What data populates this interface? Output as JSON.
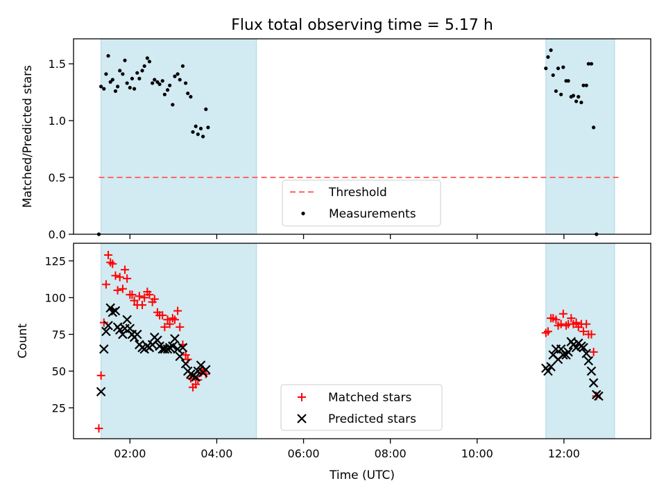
{
  "title": "Flux total observing time = 5.17 h",
  "colors": {
    "observing_band": "#add8e6",
    "threshold": "#ff6666",
    "measurements": "#000000",
    "matched": "#ff0000",
    "predicted": "#000000"
  },
  "chart_data": [
    {
      "type": "scatter",
      "panel": "top",
      "ylabel": "Matched/Predicted stars",
      "xlabel": "",
      "xlim": [
        "00:42",
        "14:00"
      ],
      "ylim": [
        0,
        1.72
      ],
      "yticks": [
        0.0,
        0.5,
        1.0,
        1.5
      ],
      "ytick_labels": [
        "0.0",
        "0.5",
        "1.0",
        "1.5"
      ],
      "grid": false,
      "legend_position": "bottom-center",
      "shaded_intervals": [
        [
          "01:20",
          "04:55"
        ],
        [
          "11:35",
          "13:10"
        ]
      ],
      "threshold": {
        "name": "Threshold",
        "value": 0.5,
        "style": "dashed",
        "x_range": [
          "01:17",
          "13:17"
        ]
      },
      "series": [
        {
          "name": "Measurements",
          "marker": "dot",
          "x": [
            "01:17",
            "01:20",
            "01:24",
            "01:27",
            "01:30",
            "01:33",
            "01:36",
            "01:40",
            "01:43",
            "01:46",
            "01:50",
            "01:53",
            "01:56",
            "02:00",
            "02:03",
            "02:06",
            "02:10",
            "02:13",
            "02:17",
            "02:20",
            "02:24",
            "02:27",
            "02:31",
            "02:34",
            "02:38",
            "02:41",
            "02:45",
            "02:48",
            "02:52",
            "02:55",
            "02:59",
            "03:02",
            "03:06",
            "03:09",
            "03:13",
            "03:17",
            "03:20",
            "03:24",
            "03:27",
            "03:31",
            "03:34",
            "03:38",
            "03:41",
            "03:45",
            "03:48",
            "03:52",
            "03:55",
            "03:58",
            "04:02",
            "04:05",
            "04:09",
            "04:12",
            "04:16",
            "04:19",
            "04:23",
            "04:26",
            "04:30",
            "04:33",
            "04:37",
            "04:41",
            "04:44",
            "04:48",
            "04:52",
            "04:55",
            "11:35",
            "11:38",
            "11:42",
            "11:45",
            "11:49",
            "11:52",
            "11:56",
            "11:59",
            "12:03",
            "12:06",
            "12:10",
            "12:13",
            "12:17",
            "12:20",
            "12:24",
            "12:27",
            "12:31",
            "12:34",
            "12:38",
            "12:41",
            "12:45",
            "12:48",
            "12:51",
            "12:55",
            "12:58",
            "13:02",
            "13:06",
            "13:10",
            "13:13",
            "13:17"
          ],
          "y": [
            0.0,
            1.3,
            1.28,
            1.41,
            1.57,
            1.34,
            1.36,
            1.26,
            1.3,
            1.44,
            1.41,
            1.53,
            1.33,
            1.29,
            1.37,
            1.28,
            1.42,
            1.37,
            1.44,
            1.48,
            1.55,
            1.52,
            1.33,
            1.36,
            1.34,
            1.32,
            1.35,
            1.23,
            1.27,
            1.31,
            1.14,
            1.39,
            1.41,
            1.36,
            1.48,
            1.33,
            1.24,
            1.21,
            0.9,
            0.95,
            0.88,
            0.93,
            0.86,
            1.1,
            0.94,
            null,
            null,
            null,
            null,
            null,
            null,
            null,
            null,
            null,
            null,
            null,
            null,
            null,
            null,
            null,
            null,
            null,
            null,
            null,
            1.46,
            1.56,
            1.62,
            1.4,
            1.26,
            1.46,
            1.23,
            1.47,
            1.35,
            1.35,
            1.21,
            1.22,
            1.17,
            1.21,
            1.16,
            1.31,
            1.31,
            1.5,
            1.5,
            0.94,
            0.0,
            null,
            null,
            null,
            null,
            null,
            null,
            null,
            null,
            null
          ]
        }
      ]
    },
    {
      "type": "scatter",
      "panel": "bottom",
      "xlabel": "Time (UTC)",
      "ylabel": "Count",
      "xlim": [
        "00:42",
        "14:00"
      ],
      "ylim": [
        4,
        137
      ],
      "xticks": [
        "02:00",
        "04:00",
        "06:00",
        "08:00",
        "10:00",
        "12:00"
      ],
      "yticks": [
        25,
        50,
        75,
        100,
        125
      ],
      "ytick_labels": [
        "25",
        "50",
        "75",
        "100",
        "125"
      ],
      "grid": false,
      "legend_position": "bottom-center",
      "shaded_intervals": [
        [
          "01:20",
          "04:55"
        ],
        [
          "11:35",
          "13:10"
        ]
      ],
      "x": [
        "01:17",
        "01:20",
        "01:24",
        "01:27",
        "01:30",
        "01:33",
        "01:36",
        "01:40",
        "01:43",
        "01:46",
        "01:50",
        "01:53",
        "01:56",
        "02:00",
        "02:03",
        "02:06",
        "02:10",
        "02:13",
        "02:17",
        "02:20",
        "02:24",
        "02:27",
        "02:31",
        "02:34",
        "02:38",
        "02:41",
        "02:45",
        "02:48",
        "02:52",
        "02:55",
        "02:59",
        "03:02",
        "03:06",
        "03:09",
        "03:13",
        "03:17",
        "03:20",
        "03:24",
        "03:27",
        "03:31",
        "03:34",
        "03:38",
        "03:41",
        "03:45",
        "03:48",
        "03:52",
        "03:55",
        "03:58",
        "04:02",
        "04:05",
        "04:09",
        "04:12",
        "04:16",
        "04:19",
        "04:23",
        "04:26",
        "04:30",
        "04:33",
        "04:37",
        "04:41",
        "04:44",
        "04:48",
        "04:52",
        "04:55",
        "11:35",
        "11:38",
        "11:42",
        "11:45",
        "11:49",
        "11:52",
        "11:56",
        "11:59",
        "12:03",
        "12:06",
        "12:10",
        "12:13",
        "12:17",
        "12:20",
        "12:24",
        "12:27",
        "12:31",
        "12:34",
        "12:38",
        "12:41",
        "12:45",
        "12:48",
        "12:51",
        "12:55",
        "12:58",
        "13:02",
        "13:06",
        "13:10",
        "13:13",
        "13:17"
      ],
      "series": [
        {
          "name": "Matched stars",
          "marker": "plus",
          "values": [
            11,
            47,
            83,
            109,
            129,
            124,
            123,
            115,
            105,
            114,
            106,
            119,
            113,
            102,
            102,
            98,
            95,
            101,
            95,
            100,
            104,
            102,
            97,
            99,
            90,
            88,
            88,
            80,
            85,
            82,
            86,
            85,
            91,
            80,
            68,
            61,
            58,
            45,
            39,
            41,
            44,
            49,
            51,
            48,
            null,
            null,
            null,
            null,
            null,
            null,
            null,
            null,
            null,
            null,
            null,
            null,
            null,
            null,
            null,
            null,
            null,
            null,
            null,
            null,
            76,
            77,
            86,
            86,
            85,
            81,
            82,
            89,
            81,
            82,
            86,
            82,
            83,
            80,
            82,
            77,
            82,
            75,
            75,
            63,
            33,
            null,
            null,
            null,
            null,
            null,
            null,
            null,
            null,
            null
          ]
        },
        {
          "name": "Predicted stars",
          "marker": "x",
          "values": [
            null,
            36,
            65,
            77,
            81,
            93,
            90,
            91,
            80,
            78,
            75,
            79,
            85,
            79,
            75,
            73,
            75,
            68,
            66,
            65,
            67,
            66,
            68,
            73,
            71,
            67,
            65,
            65,
            65,
            66,
            67,
            72,
            65,
            60,
            66,
            55,
            50,
            48,
            47,
            46,
            50,
            54,
            49,
            51,
            null,
            null,
            null,
            null,
            null,
            null,
            null,
            null,
            null,
            null,
            null,
            null,
            null,
            null,
            null,
            null,
            null,
            null,
            null,
            null,
            52,
            50,
            53,
            61,
            65,
            58,
            65,
            61,
            61,
            63,
            70,
            68,
            66,
            69,
            67,
            66,
            62,
            57,
            50,
            42,
            34,
            33,
            null,
            null,
            null,
            null,
            null,
            null,
            null,
            null
          ]
        }
      ]
    }
  ]
}
